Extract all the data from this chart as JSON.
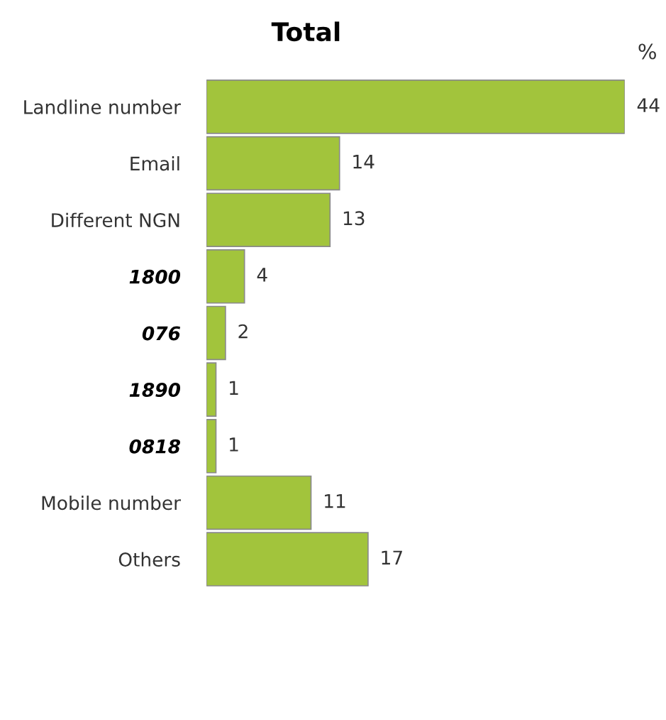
{
  "chart_data": {
    "type": "bar",
    "orientation": "horizontal",
    "title": "Total",
    "xlabel": "%",
    "categories": [
      "Landline number",
      "Email",
      "Different NGN",
      "1800",
      "076",
      "1890",
      "0818",
      "Mobile number",
      "Others"
    ],
    "values": [
      44,
      14,
      13,
      4,
      2,
      1,
      1,
      11,
      17
    ],
    "color": "#a2c43c",
    "data_labels": true,
    "grid": false,
    "legend": false
  }
}
